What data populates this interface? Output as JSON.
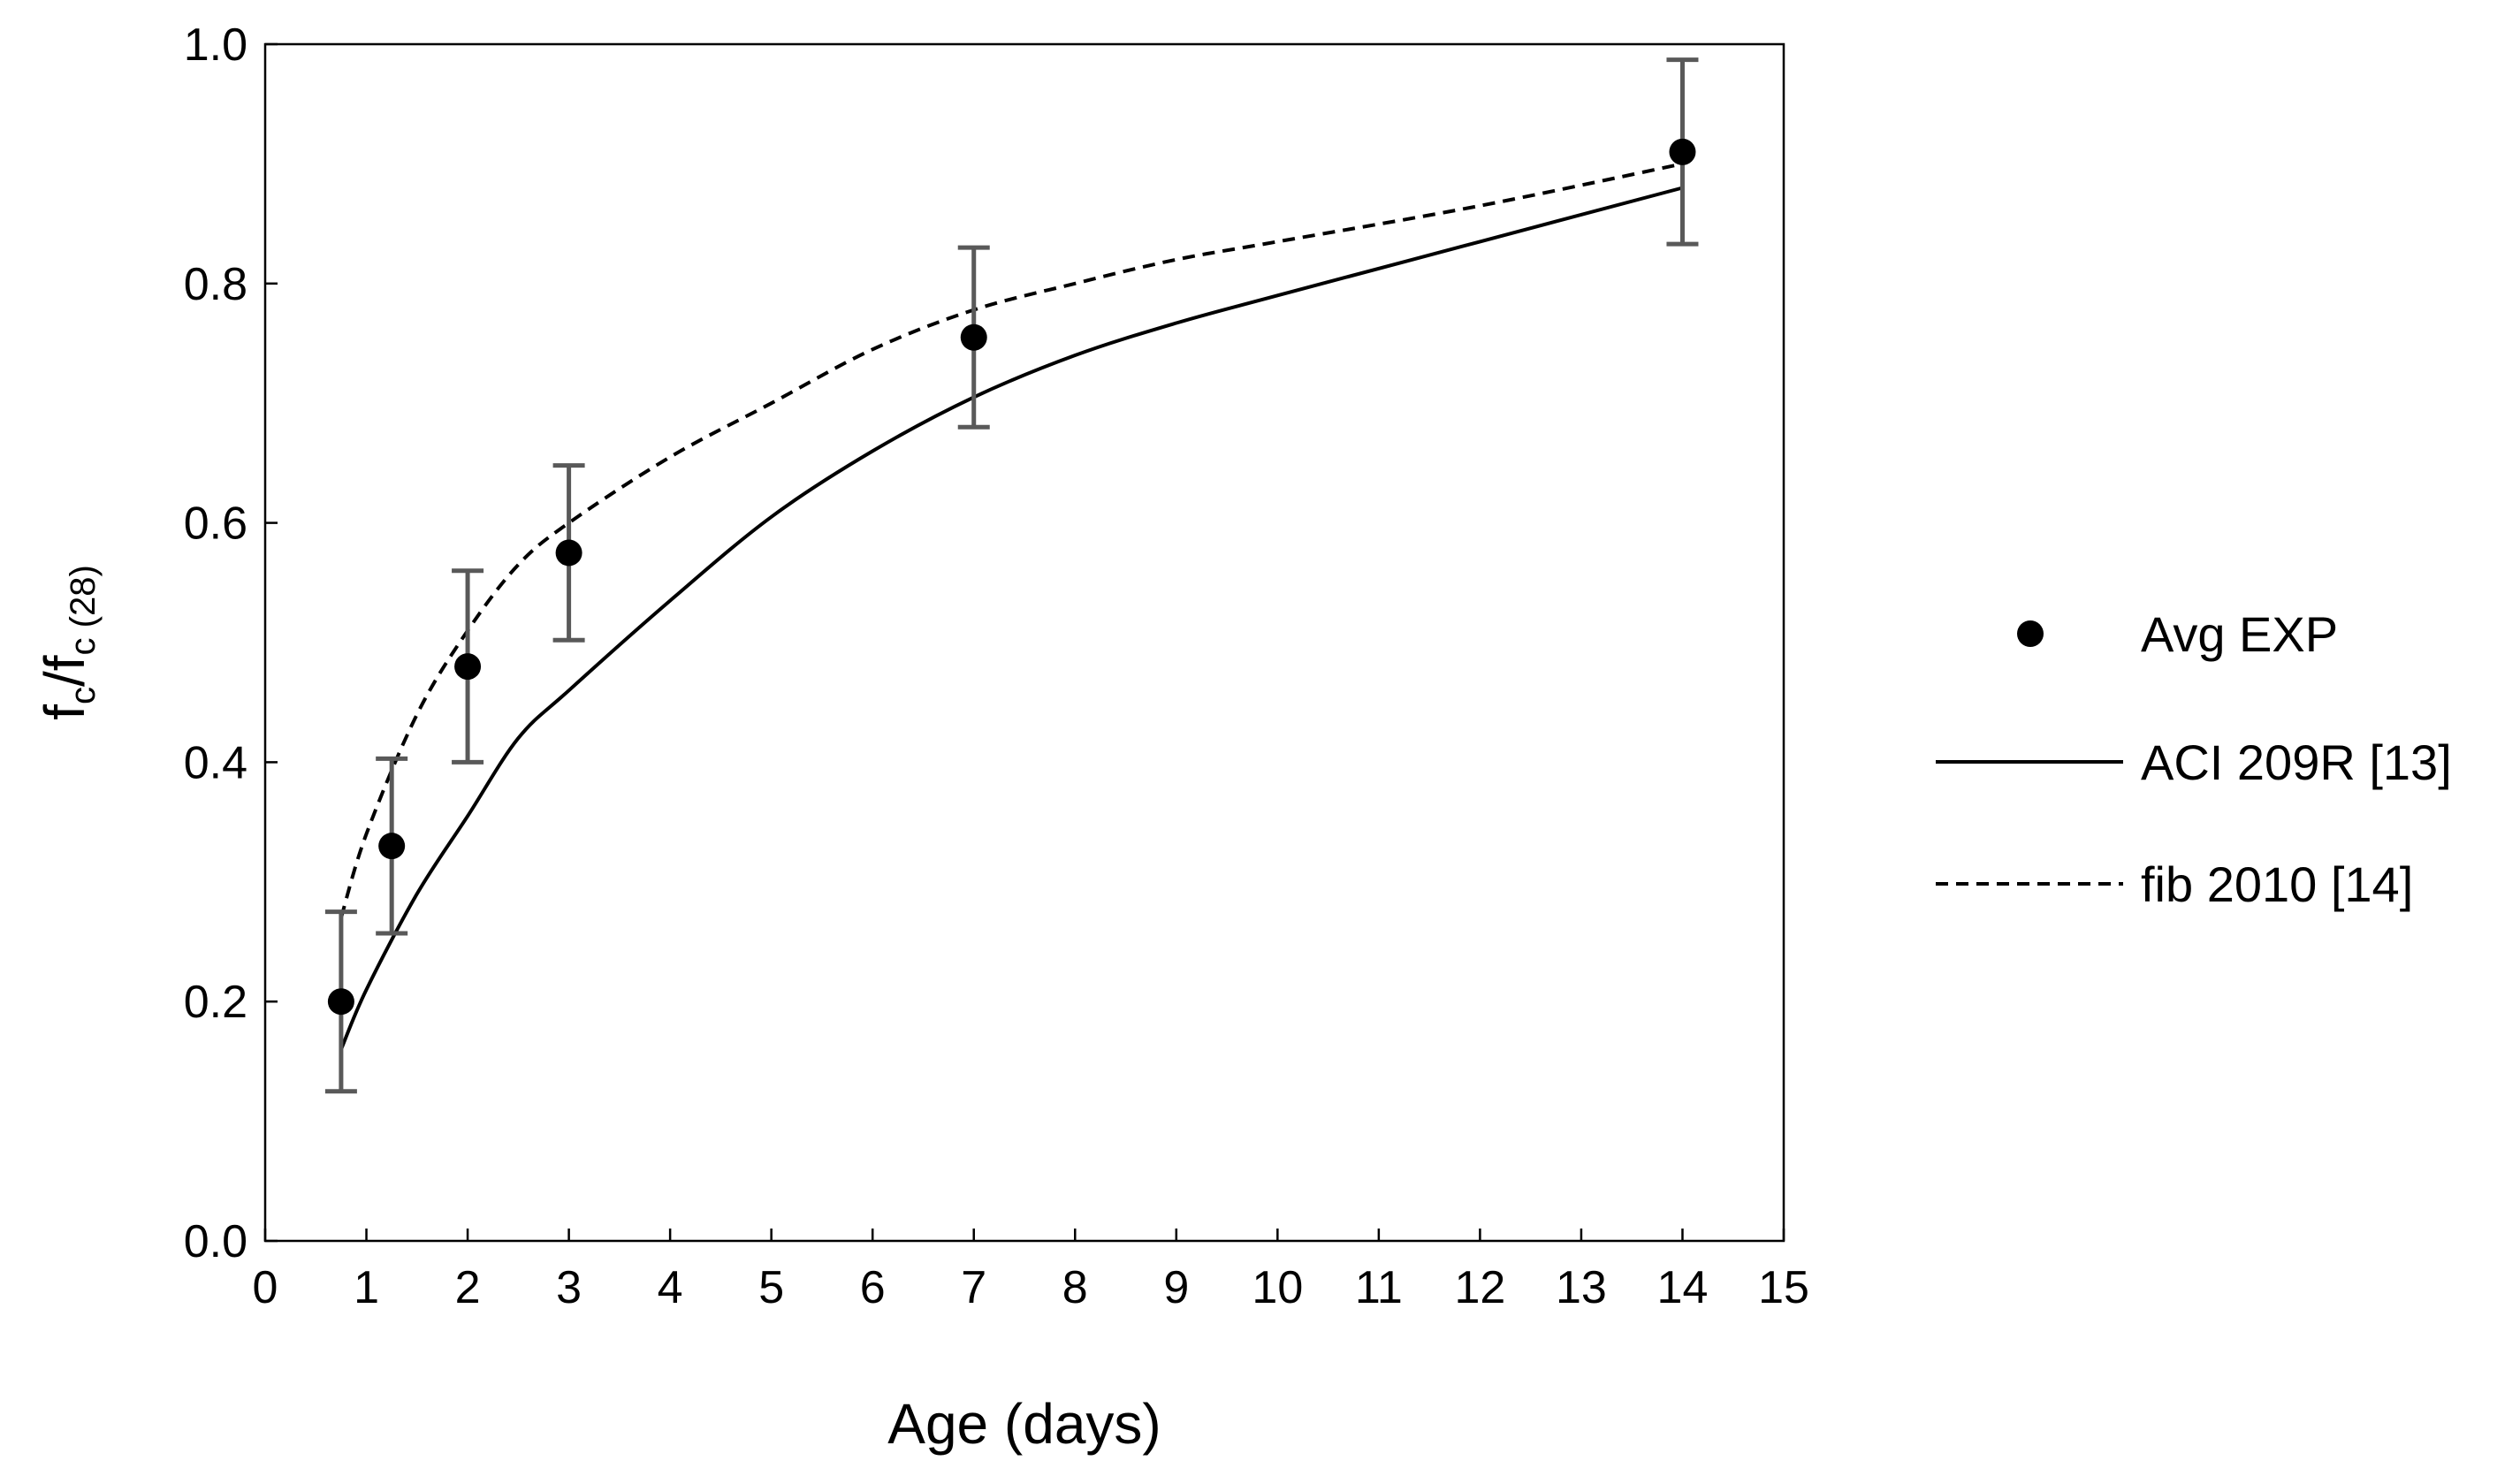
{
  "chart_data": {
    "type": "scatter",
    "title": "",
    "xlabel": "Age (days)",
    "ylabel": {
      "base1": "f",
      "sub1": "c",
      "slash": "/",
      "base2": "f",
      "sub2": "c (28)"
    },
    "xlim": [
      0,
      15
    ],
    "ylim": [
      0,
      1.0
    ],
    "x_ticks": [
      0,
      1,
      2,
      3,
      4,
      5,
      6,
      7,
      8,
      9,
      10,
      11,
      12,
      13,
      14,
      15
    ],
    "x_tick_labels": [
      "0",
      "1",
      "2",
      "3",
      "4",
      "5",
      "6",
      "7",
      "8",
      "9",
      "10",
      "11",
      "12",
      "13",
      "14",
      "15"
    ],
    "y_ticks": [
      0,
      0.2,
      0.4,
      0.6,
      0.8,
      1.0
    ],
    "y_tick_labels": [
      "0.0",
      "0.2",
      "0.4",
      "0.6",
      "0.8",
      "1.0"
    ],
    "grid": false,
    "legend_position": "right",
    "series": [
      {
        "name": "Avg EXP",
        "kind": "points",
        "marker": "filled-circle",
        "color": "#000000",
        "error_color": "#595959",
        "points": [
          {
            "x": 0.75,
            "y": 0.2,
            "err": 0.075
          },
          {
            "x": 1.25,
            "y": 0.33,
            "err": 0.073
          },
          {
            "x": 2.0,
            "y": 0.48,
            "err": 0.08
          },
          {
            "x": 3.0,
            "y": 0.575,
            "err": 0.073
          },
          {
            "x": 7.0,
            "y": 0.755,
            "err": 0.075
          },
          {
            "x": 14.0,
            "y": 0.91,
            "err": 0.077
          }
        ]
      },
      {
        "name": "ACI 209R [13]",
        "kind": "line",
        "style": "solid",
        "color": "#000000",
        "points": [
          {
            "x": 0.75,
            "y": 0.16
          },
          {
            "x": 1.0,
            "y": 0.21
          },
          {
            "x": 1.5,
            "y": 0.29
          },
          {
            "x": 2.0,
            "y": 0.355
          },
          {
            "x": 2.5,
            "y": 0.42
          },
          {
            "x": 3.0,
            "y": 0.46
          },
          {
            "x": 4.0,
            "y": 0.535
          },
          {
            "x": 5.0,
            "y": 0.605
          },
          {
            "x": 6.0,
            "y": 0.66
          },
          {
            "x": 7.0,
            "y": 0.705
          },
          {
            "x": 8.0,
            "y": 0.74
          },
          {
            "x": 9.0,
            "y": 0.767
          },
          {
            "x": 10.0,
            "y": 0.79
          },
          {
            "x": 12.0,
            "y": 0.835
          },
          {
            "x": 14.0,
            "y": 0.88
          }
        ]
      },
      {
        "name": "fib 2010 [14]",
        "kind": "line",
        "style": "dashed",
        "color": "#000000",
        "points": [
          {
            "x": 0.75,
            "y": 0.27
          },
          {
            "x": 1.0,
            "y": 0.34
          },
          {
            "x": 1.5,
            "y": 0.44
          },
          {
            "x": 2.0,
            "y": 0.51
          },
          {
            "x": 2.5,
            "y": 0.565
          },
          {
            "x": 3.0,
            "y": 0.6
          },
          {
            "x": 4.0,
            "y": 0.655
          },
          {
            "x": 5.0,
            "y": 0.7
          },
          {
            "x": 6.0,
            "y": 0.745
          },
          {
            "x": 7.0,
            "y": 0.778
          },
          {
            "x": 8.0,
            "y": 0.8
          },
          {
            "x": 9.0,
            "y": 0.82
          },
          {
            "x": 10.0,
            "y": 0.835
          },
          {
            "x": 12.0,
            "y": 0.865
          },
          {
            "x": 14.0,
            "y": 0.9
          }
        ]
      }
    ]
  }
}
